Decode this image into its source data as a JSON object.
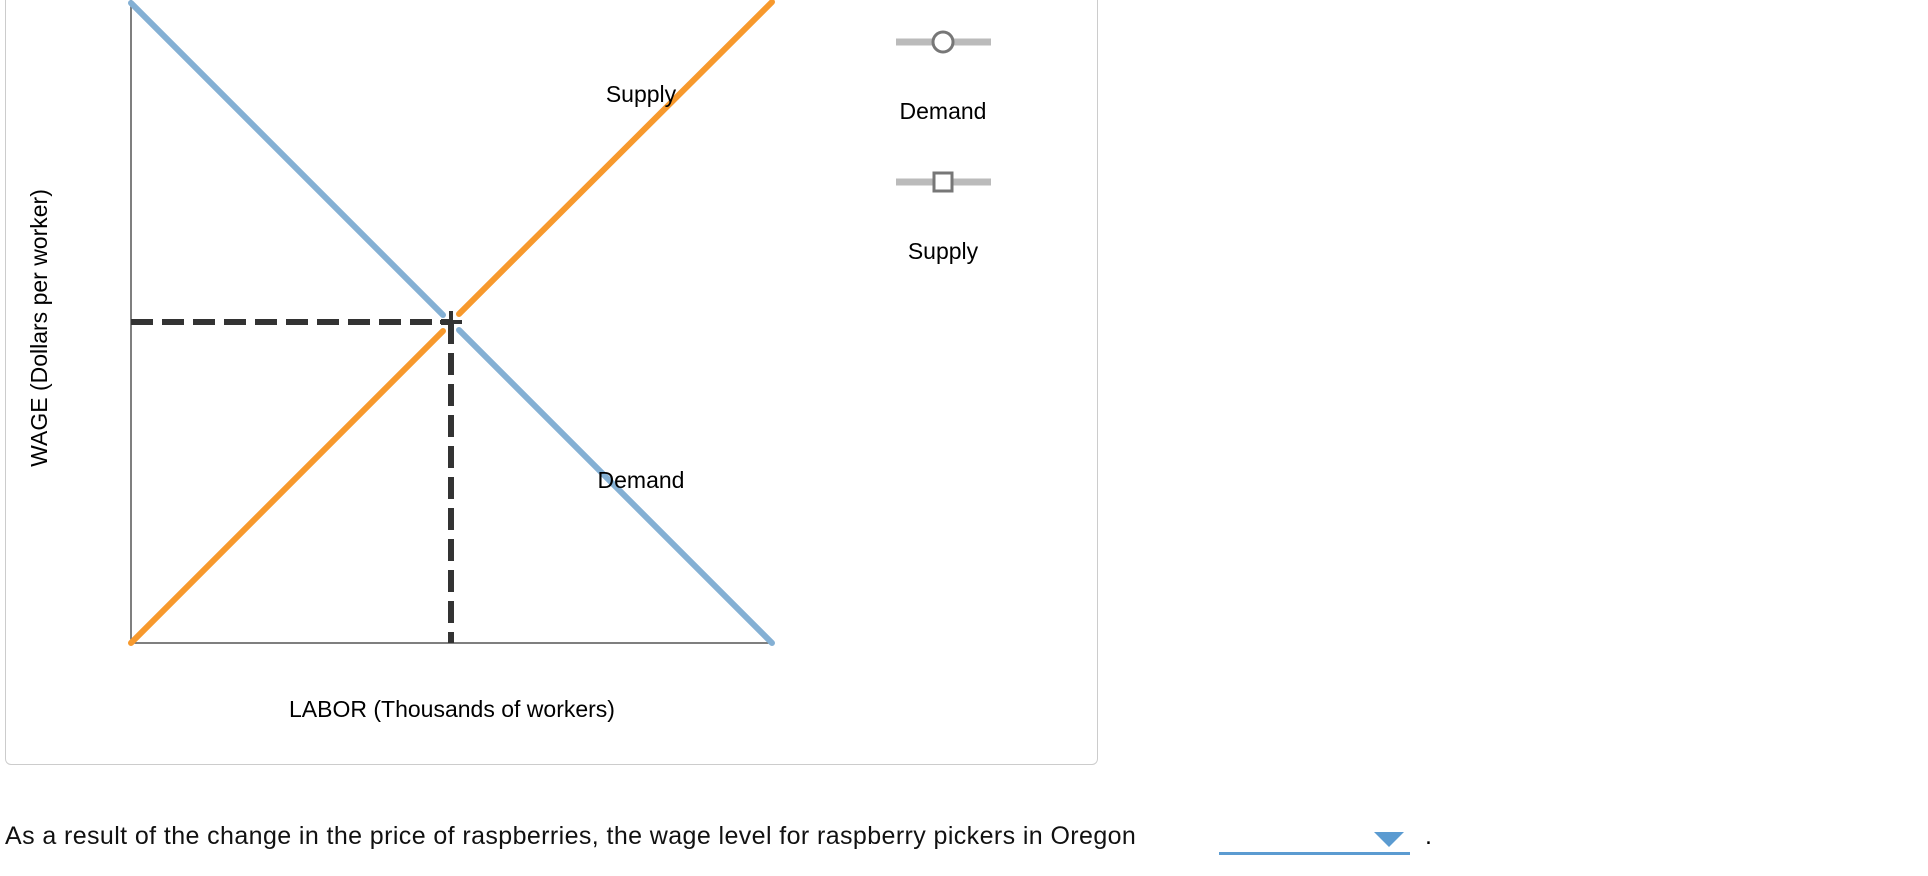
{
  "graph": {
    "y_axis_label": "WAGE (Dollars per worker)",
    "x_axis_label": "LABOR (Thousands of workers)",
    "curve_labels": {
      "supply": "Supply",
      "demand": "Demand"
    },
    "legend": [
      {
        "label": "Demand"
      },
      {
        "label": "Supply"
      }
    ]
  },
  "question": {
    "text": "As a result of the change in the price of raspberries, the wage level for raspberry pickers in Oregon",
    "end": "."
  }
}
